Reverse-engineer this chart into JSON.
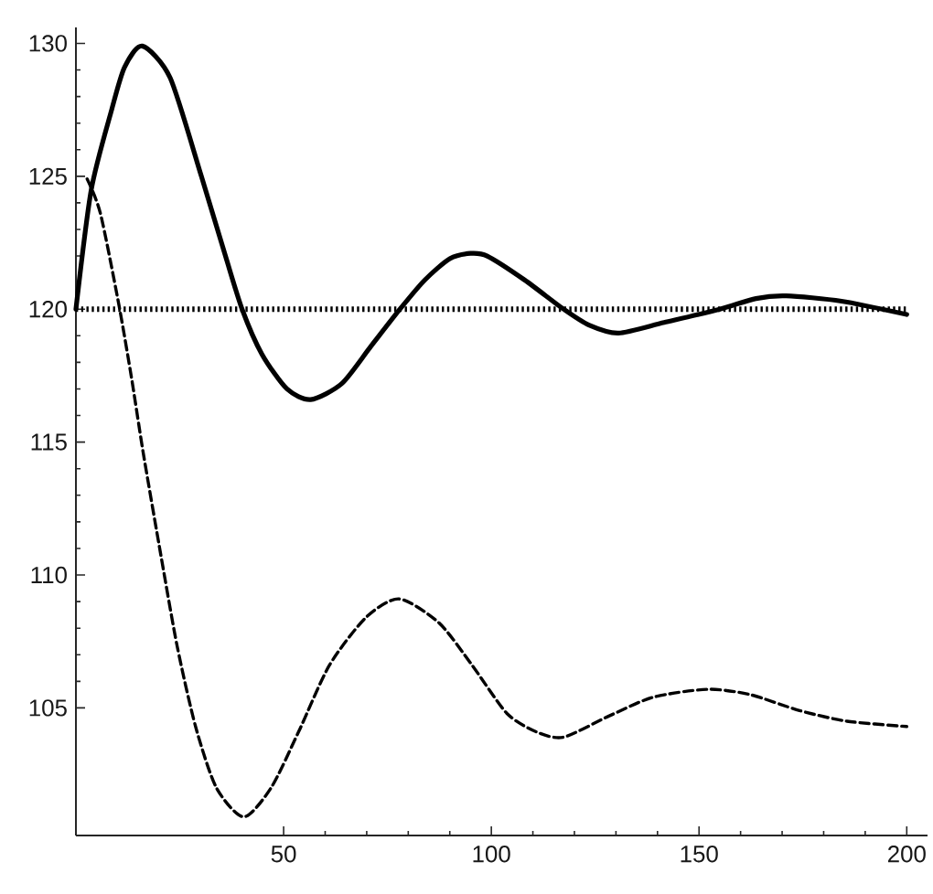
{
  "chart_data": {
    "type": "line",
    "xlim": [
      0,
      205
    ],
    "ylim": [
      100.2,
      130.6
    ],
    "xticks": [
      50,
      100,
      150,
      200
    ],
    "yticks": [
      105,
      110,
      115,
      120,
      125,
      130
    ],
    "marker": "none",
    "series": [
      {
        "color": "#000000",
        "line_style": "solid",
        "x": [
          0,
          3.7,
          8.6,
          11.7,
          16,
          22.7,
          30.2,
          36,
          40,
          44.8,
          50.8,
          56.5,
          64,
          71,
          78,
          84,
          90,
          95,
          99,
          108,
          117.4,
          123.5,
          130.6,
          141.6,
          155,
          163.7,
          171,
          184.3,
          200
        ],
        "values": [
          120,
          124.5,
          127.5,
          129.1,
          129.9,
          128.7,
          125,
          122,
          120,
          118.3,
          117,
          116.6,
          117.2,
          118.6,
          120,
          121.1,
          121.9,
          122.1,
          122,
          121.1,
          120,
          119.4,
          119.1,
          119.5,
          120,
          120.4,
          120.5,
          120.3,
          119.8
        ]
      },
      {
        "color": "#000000",
        "line_style": "dashed",
        "x": [
          2.7,
          5.9,
          10.3,
          13.4,
          16.2,
          20.5,
          24.4,
          28.8,
          33.8,
          40.4,
          47,
          53.6,
          61,
          69.8,
          77.8,
          87.4,
          95.4,
          103.7,
          110.8,
          117.4,
          128.4,
          138.9,
          152,
          162.3,
          174.2,
          185.6,
          200
        ],
        "values": [
          124.9,
          123.6,
          120.2,
          117.4,
          114.6,
          110.7,
          107.3,
          104.3,
          102.0,
          100.9,
          102.0,
          104.1,
          106.6,
          108.4,
          109.1,
          108.2,
          106.6,
          104.8,
          104.1,
          103.9,
          104.7,
          105.4,
          105.7,
          105.5,
          104.9,
          104.5,
          104.3
        ]
      },
      {
        "color": "#000000",
        "line_style": "dotted",
        "x": [
          0,
          200
        ],
        "values": [
          120,
          120
        ]
      }
    ]
  }
}
